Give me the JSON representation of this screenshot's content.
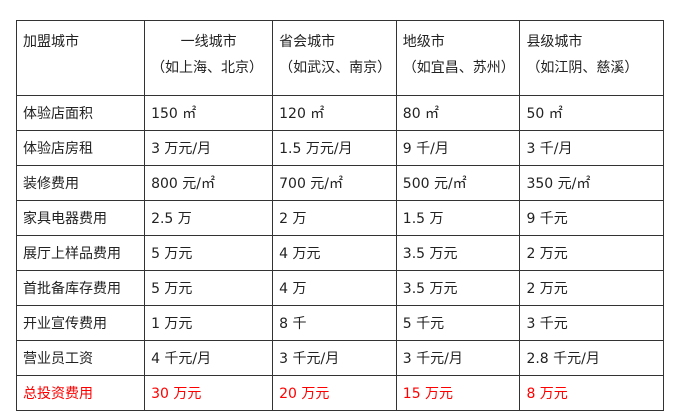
{
  "header": {
    "label": "加盟城市",
    "columns": [
      {
        "title": "一线城市",
        "examples": "（如上海、北京）"
      },
      {
        "title": "省会城市",
        "examples": "（如武汉、南京）"
      },
      {
        "title": "地级市",
        "examples": "（如宜昌、苏州）"
      },
      {
        "title": "县级城市",
        "examples": "（如江阴、慈溪）"
      }
    ]
  },
  "rows": [
    {
      "label": "体验店面积",
      "values": [
        "150 ㎡",
        "120 ㎡",
        "80 ㎡",
        "50 ㎡"
      ]
    },
    {
      "label": "体验店房租",
      "values": [
        "3 万元/月",
        "1.5 万元/月",
        "9 千/月",
        "3 千/月"
      ]
    },
    {
      "label": "装修费用",
      "values": [
        "800 元/㎡",
        "700 元/㎡",
        "500 元/㎡",
        "350 元/㎡"
      ]
    },
    {
      "label": "家具电器费用",
      "values": [
        "2.5 万",
        "2 万",
        "1.5 万",
        "9 千元"
      ]
    },
    {
      "label": "展厅上样品费用",
      "values": [
        "5 万元",
        "4 万元",
        "3.5 万元",
        "2 万元"
      ]
    },
    {
      "label": "首批备库存费用",
      "values": [
        "5 万元",
        "4 万",
        "3.5 万元",
        "2 万元"
      ]
    },
    {
      "label": "开业宣传费用",
      "values": [
        "1 万元",
        "8 千",
        "5 千元",
        "3 千元"
      ]
    },
    {
      "label": "营业员工资",
      "values": [
        "4 千元/月",
        "3 千元/月",
        "3 千元/月",
        "2.8 千元/月"
      ]
    }
  ],
  "total": {
    "label": "总投资费用",
    "values": [
      "30 万元",
      "20 万元",
      "15 万元",
      "8 万元"
    ],
    "color": "#ff0000"
  }
}
